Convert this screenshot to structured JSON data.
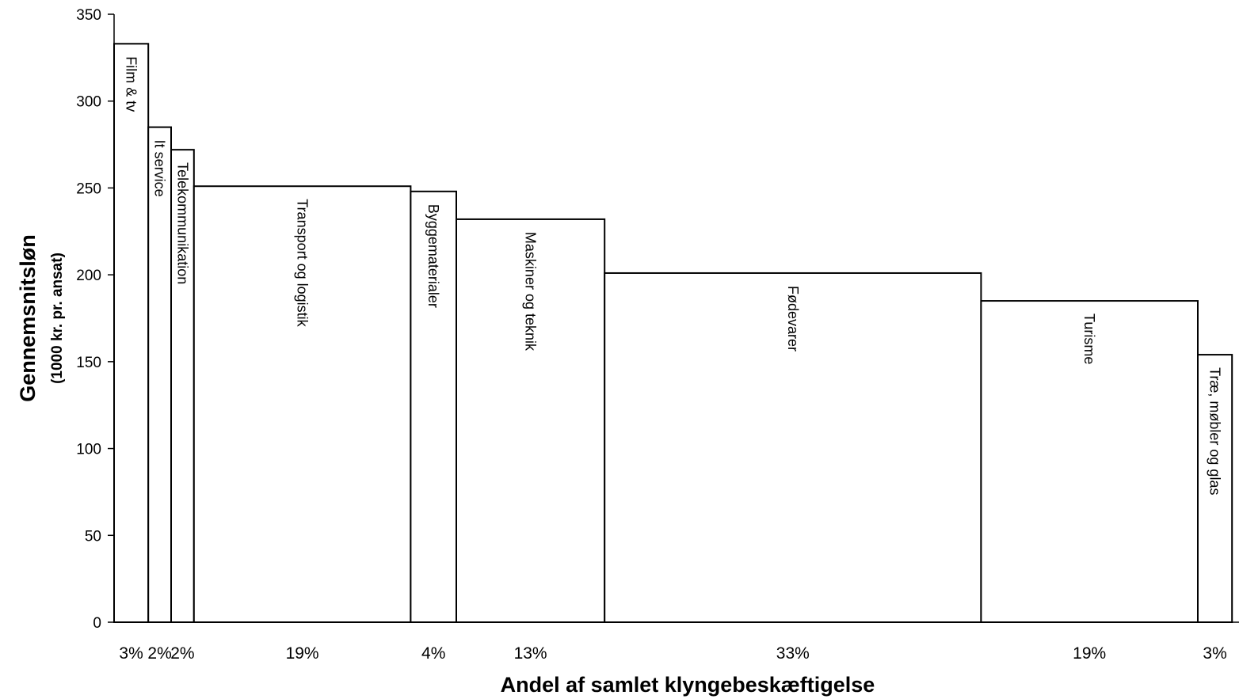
{
  "chart_data": {
    "type": "bar",
    "variant": "variable-width (marimekko)",
    "xlabel": "Andel af samlet klyngebeskæftigelse",
    "ylabel": "Gennemsnitsløn",
    "ylabel_sub": "(1000 kr. pr. ansat)",
    "ylim": [
      0,
      350
    ],
    "yticks": [
      "0",
      "50",
      "100",
      "150",
      "200",
      "250",
      "300",
      "350"
    ],
    "grid": false,
    "legend": "none",
    "colors": {
      "fill": "#ffffff",
      "stroke": "#000000"
    },
    "bars": [
      {
        "name": "Film & tv",
        "value": 333,
        "width_share": 3,
        "width_label": "3%"
      },
      {
        "name": "It service",
        "value": 285,
        "width_share": 2,
        "width_label": "2%"
      },
      {
        "name": "Telekommunikation",
        "value": 272,
        "width_share": 2,
        "width_label": "2%"
      },
      {
        "name": "Transport og logistik",
        "value": 251,
        "width_share": 19,
        "width_label": "19%"
      },
      {
        "name": "Byggematerialer",
        "value": 248,
        "width_share": 4,
        "width_label": "4%"
      },
      {
        "name": "Maskiner og teknik",
        "value": 232,
        "width_share": 13,
        "width_label": "13%"
      },
      {
        "name": "Fødevarer",
        "value": 201,
        "width_share": 33,
        "width_label": "33%"
      },
      {
        "name": "Turisme",
        "value": 185,
        "width_share": 19,
        "width_label": "19%"
      },
      {
        "name": "Træ, møbler og glas",
        "value": 154,
        "width_share": 3,
        "width_label": "3%"
      }
    ]
  }
}
